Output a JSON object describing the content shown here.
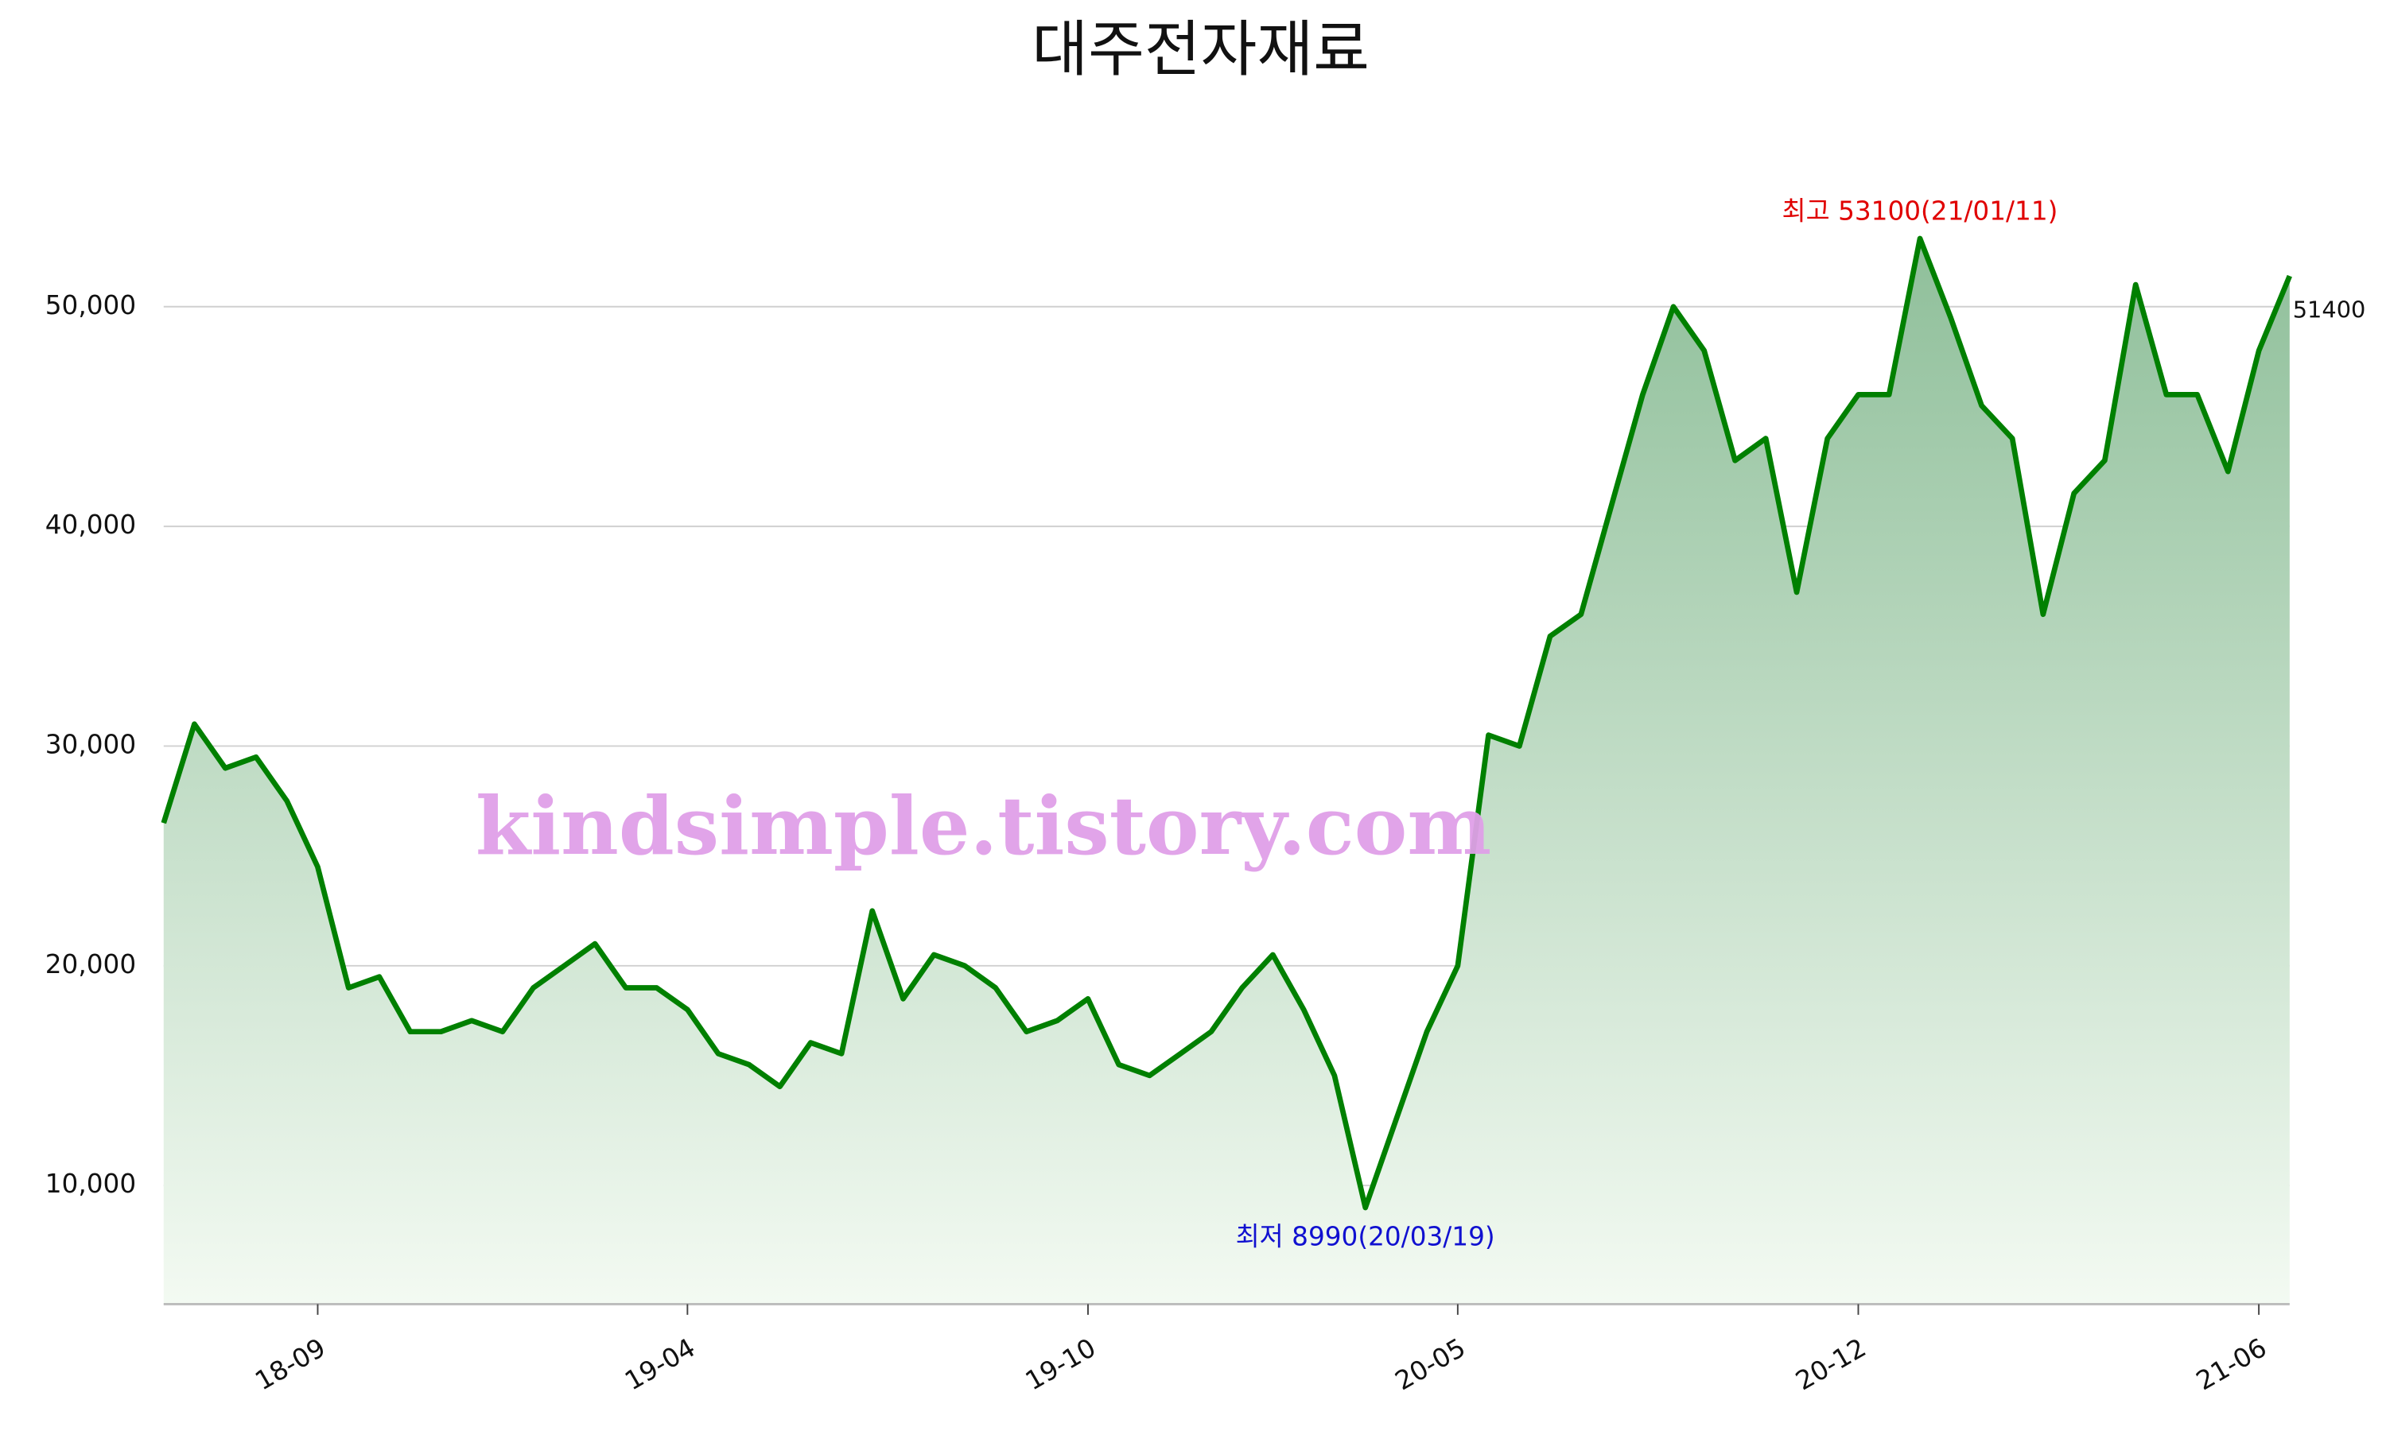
{
  "chart_data": {
    "type": "area-line",
    "title": "대주전자재료",
    "watermark": "kindsimple.tistory.com",
    "annotations": {
      "max_label": "최고 53100(21/01/11)",
      "min_label": "최저 8990(20/03/19)",
      "last_label": "51400"
    },
    "categories": [
      null,
      null,
      null,
      null,
      null,
      "18-09",
      null,
      null,
      null,
      null,
      null,
      null,
      null,
      null,
      null,
      null,
      null,
      "19-04",
      null,
      null,
      null,
      null,
      null,
      null,
      null,
      null,
      null,
      null,
      null,
      null,
      "19-10",
      null,
      null,
      null,
      null,
      null,
      null,
      null,
      null,
      null,
      null,
      null,
      "20-05",
      null,
      null,
      null,
      null,
      null,
      null,
      null,
      null,
      null,
      null,
      null,
      null,
      "20-12",
      null,
      null,
      null,
      null,
      null,
      null,
      null,
      null,
      null,
      null,
      null,
      null,
      "21-06",
      null
    ],
    "series": [
      {
        "name": "대주전자재료",
        "color": "#008000",
        "values": [
          26500,
          31000,
          29000,
          29500,
          27500,
          24500,
          19000,
          19500,
          17000,
          17000,
          17500,
          17000,
          19000,
          20000,
          21000,
          19000,
          19000,
          18000,
          16000,
          15500,
          14500,
          16500,
          16000,
          22500,
          18500,
          20500,
          20000,
          19000,
          17000,
          17500,
          18500,
          15500,
          15000,
          16000,
          17000,
          19000,
          20500,
          18000,
          15000,
          8990,
          13000,
          17000,
          20000,
          30500,
          30000,
          35000,
          36000,
          41000,
          46000,
          50000,
          48000,
          43000,
          44000,
          37000,
          44000,
          46000,
          46000,
          53100,
          49500,
          45500,
          44000,
          36000,
          41500,
          43000,
          51000,
          46000,
          46000,
          42500,
          48000,
          51400
        ]
      }
    ],
    "ylim": [
      4600,
      57000
    ],
    "yticks": [
      {
        "value": 10000,
        "label": "10,000"
      },
      {
        "value": 20000,
        "label": "20,000"
      },
      {
        "value": 30000,
        "label": "30,000"
      },
      {
        "value": 40000,
        "label": "40,000"
      },
      {
        "value": 50000,
        "label": "50,000"
      }
    ],
    "grid": true,
    "fill_top": "#8fbf9a",
    "fill_bottom": "#f3faf2"
  }
}
